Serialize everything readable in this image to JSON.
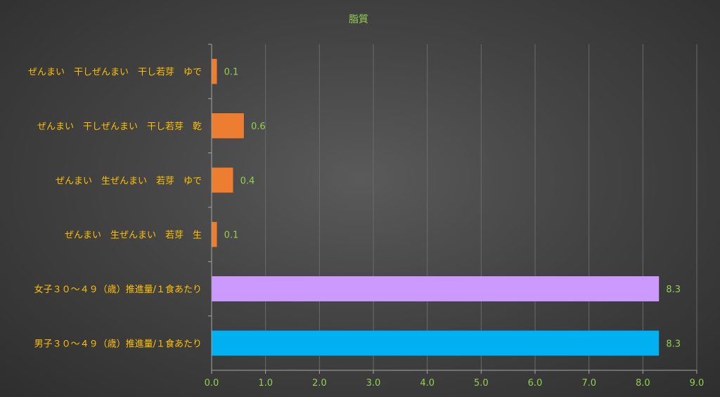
{
  "chart_data": {
    "type": "bar",
    "orientation": "horizontal",
    "title": "脂質",
    "categories": [
      "ぜんまい　干しぜんまい　干し若芽　ゆで",
      "ぜんまい　干しぜんまい　干し若芽　乾",
      "ぜんまい　生ぜんまい　若芽　ゆで",
      "ぜんまい　生ぜんまい　若芽　生",
      "女子３０～４９（歳）推進量/１食あたり",
      "男子３０～４９（歳）推進量/１食あたり"
    ],
    "values": [
      0.1,
      0.6,
      0.4,
      0.1,
      8.3,
      8.3
    ],
    "value_labels": [
      "0.1",
      "0.6",
      "0.4",
      "0.1",
      "8.3",
      "8.3"
    ],
    "bar_colors": [
      "#ed7d31",
      "#ed7d31",
      "#ed7d31",
      "#ed7d31",
      "#cc99ff",
      "#00b0f0"
    ],
    "xlim": [
      0,
      9
    ],
    "x_ticks": [
      "0.0",
      "1.0",
      "2.0",
      "3.0",
      "4.0",
      "5.0",
      "6.0",
      "7.0",
      "8.0",
      "9.0"
    ],
    "grid": true,
    "legend": "none",
    "colors": {
      "title": "#92d050",
      "category_label": "#ffc000",
      "tick_label": "#92d050",
      "data_label": "#92d050",
      "gridline": "#6a6a6a",
      "axis": "#a6a6a6"
    }
  }
}
